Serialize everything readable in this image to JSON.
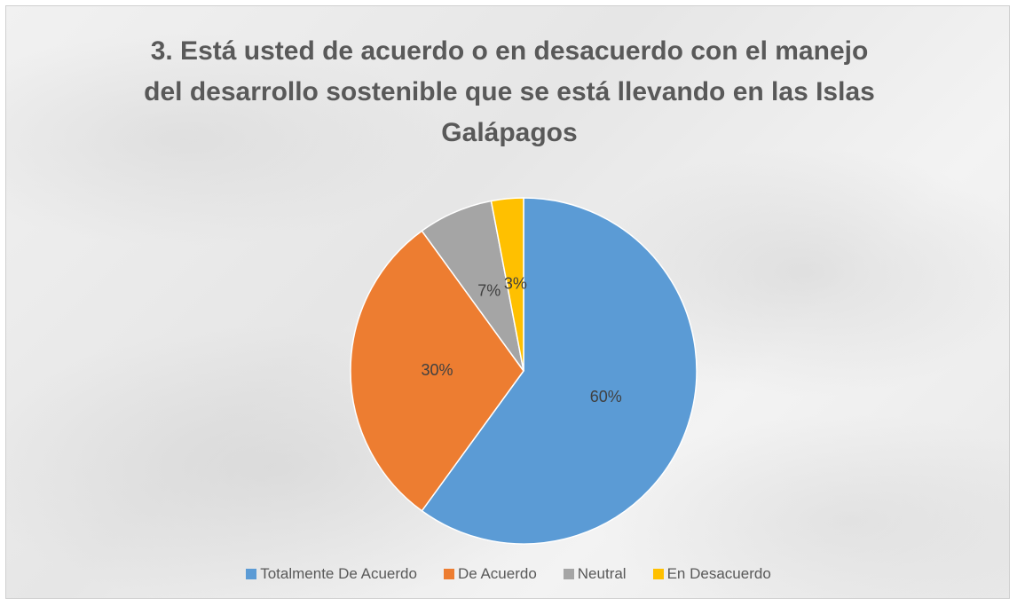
{
  "chart_data": {
    "type": "pie",
    "title": "3. Está usted de acuerdo o en desacuerdo con el manejo del desarrollo sostenible que se está llevando en las Islas Galápagos",
    "categories": [
      "Totalmente De Acuerdo",
      "De Acuerdo",
      "Neutral",
      "En Desacuerdo"
    ],
    "values": [
      60,
      30,
      7,
      3
    ],
    "value_labels": [
      "60%",
      "30%",
      "7%",
      "3%"
    ],
    "colors": [
      "#5b9bd5",
      "#ed7d31",
      "#a5a5a5",
      "#ffc000"
    ],
    "legend": "bottom"
  }
}
